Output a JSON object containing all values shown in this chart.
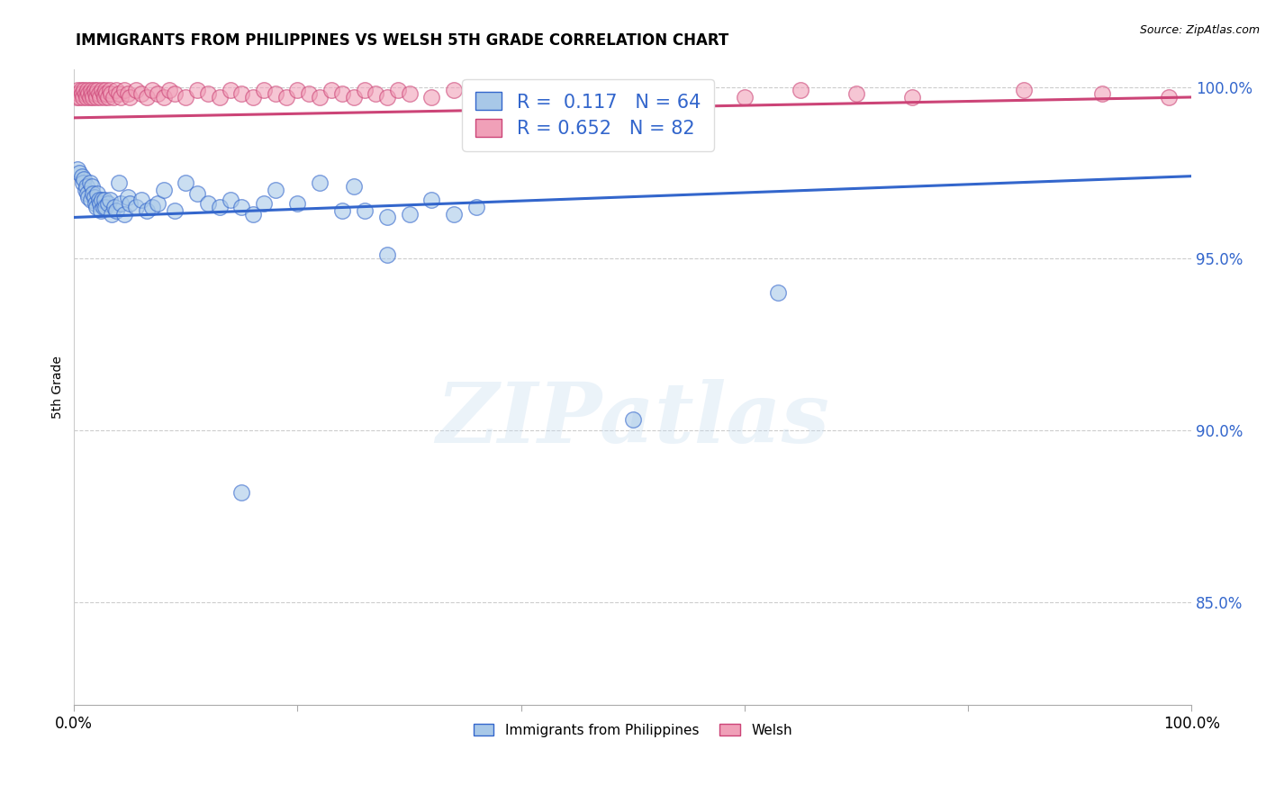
{
  "title": "IMMIGRANTS FROM PHILIPPINES VS WELSH 5TH GRADE CORRELATION CHART",
  "source": "Source: ZipAtlas.com",
  "ylabel": "5th Grade",
  "xlim": [
    0.0,
    1.0
  ],
  "ylim": [
    0.82,
    1.005
  ],
  "yticks": [
    0.85,
    0.9,
    0.95,
    1.0
  ],
  "ytick_labels": [
    "85.0%",
    "90.0%",
    "95.0%",
    "100.0%"
  ],
  "xticks": [
    0.0,
    0.2,
    0.4,
    0.6,
    0.8,
    1.0
  ],
  "xtick_labels": [
    "0.0%",
    "",
    "",
    "",
    "",
    "100.0%"
  ],
  "blue_R": 0.117,
  "blue_N": 64,
  "pink_R": 0.652,
  "pink_N": 82,
  "blue_color": "#a8c8e8",
  "pink_color": "#f0a0b8",
  "blue_line_color": "#3366cc",
  "pink_line_color": "#cc4477",
  "legend_blue_label": "Immigrants from Philippines",
  "legend_pink_label": "Welsh",
  "background_color": "#ffffff",
  "blue_scatter_x": [
    0.003,
    0.005,
    0.007,
    0.008,
    0.009,
    0.01,
    0.011,
    0.012,
    0.013,
    0.014,
    0.015,
    0.016,
    0.017,
    0.018,
    0.019,
    0.02,
    0.021,
    0.022,
    0.023,
    0.024,
    0.025,
    0.026,
    0.027,
    0.028,
    0.03,
    0.032,
    0.034,
    0.036,
    0.038,
    0.04,
    0.042,
    0.045,
    0.048,
    0.05,
    0.055,
    0.06,
    0.065,
    0.07,
    0.075,
    0.08,
    0.09,
    0.1,
    0.11,
    0.12,
    0.13,
    0.14,
    0.15,
    0.16,
    0.17,
    0.18,
    0.2,
    0.22,
    0.24,
    0.26,
    0.28,
    0.3,
    0.32,
    0.34,
    0.36,
    0.63,
    0.28,
    0.5,
    0.25,
    0.15
  ],
  "blue_scatter_y": [
    0.976,
    0.975,
    0.974,
    0.972,
    0.973,
    0.97,
    0.971,
    0.969,
    0.968,
    0.972,
    0.967,
    0.971,
    0.969,
    0.968,
    0.966,
    0.965,
    0.969,
    0.967,
    0.966,
    0.964,
    0.967,
    0.965,
    0.967,
    0.965,
    0.966,
    0.967,
    0.963,
    0.965,
    0.964,
    0.972,
    0.966,
    0.963,
    0.968,
    0.966,
    0.965,
    0.967,
    0.964,
    0.965,
    0.966,
    0.97,
    0.964,
    0.972,
    0.969,
    0.966,
    0.965,
    0.967,
    0.965,
    0.963,
    0.966,
    0.97,
    0.966,
    0.972,
    0.964,
    0.964,
    0.962,
    0.963,
    0.967,
    0.963,
    0.965,
    0.94,
    0.951,
    0.903,
    0.971,
    0.882
  ],
  "pink_scatter_x": [
    0.002,
    0.003,
    0.004,
    0.005,
    0.006,
    0.007,
    0.008,
    0.009,
    0.01,
    0.011,
    0.012,
    0.013,
    0.014,
    0.015,
    0.016,
    0.017,
    0.018,
    0.019,
    0.02,
    0.021,
    0.022,
    0.023,
    0.025,
    0.026,
    0.027,
    0.028,
    0.029,
    0.03,
    0.032,
    0.033,
    0.035,
    0.038,
    0.04,
    0.042,
    0.045,
    0.048,
    0.05,
    0.055,
    0.06,
    0.065,
    0.07,
    0.075,
    0.08,
    0.085,
    0.09,
    0.1,
    0.11,
    0.12,
    0.13,
    0.14,
    0.15,
    0.16,
    0.17,
    0.18,
    0.19,
    0.2,
    0.21,
    0.22,
    0.23,
    0.24,
    0.25,
    0.26,
    0.27,
    0.28,
    0.29,
    0.3,
    0.32,
    0.34,
    0.36,
    0.38,
    0.42,
    0.46,
    0.49,
    0.52,
    0.55,
    0.6,
    0.65,
    0.7,
    0.75,
    0.85,
    0.92,
    0.98
  ],
  "pink_scatter_y": [
    0.997,
    0.999,
    0.998,
    0.997,
    0.999,
    0.998,
    0.997,
    0.999,
    0.998,
    0.997,
    0.999,
    0.998,
    0.997,
    0.999,
    0.998,
    0.997,
    0.999,
    0.998,
    0.997,
    0.999,
    0.998,
    0.997,
    0.999,
    0.998,
    0.997,
    0.999,
    0.998,
    0.997,
    0.999,
    0.998,
    0.997,
    0.999,
    0.998,
    0.997,
    0.999,
    0.998,
    0.997,
    0.999,
    0.998,
    0.997,
    0.999,
    0.998,
    0.997,
    0.999,
    0.998,
    0.997,
    0.999,
    0.998,
    0.997,
    0.999,
    0.998,
    0.997,
    0.999,
    0.998,
    0.997,
    0.999,
    0.998,
    0.997,
    0.999,
    0.998,
    0.997,
    0.999,
    0.998,
    0.997,
    0.999,
    0.998,
    0.997,
    0.999,
    0.998,
    0.997,
    0.999,
    0.998,
    0.997,
    0.999,
    0.998,
    0.997,
    0.999,
    0.998,
    0.997,
    0.999,
    0.998,
    0.997
  ],
  "blue_line_x0": 0.0,
  "blue_line_x1": 1.0,
  "blue_line_y0": 0.962,
  "blue_line_y1": 0.974,
  "pink_line_x0": 0.0,
  "pink_line_x1": 1.0,
  "pink_line_y0": 0.991,
  "pink_line_y1": 0.997
}
